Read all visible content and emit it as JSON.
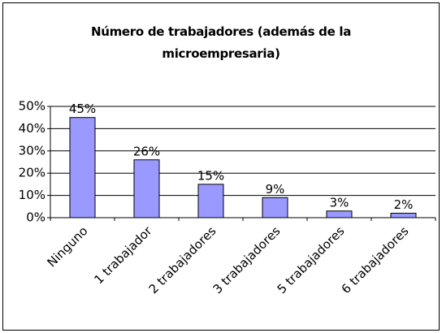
{
  "chart_data": {
    "type": "bar",
    "title": "Número de trabajadores (además de la microempresaria)",
    "categories": [
      "Ninguno",
      "1 trabajador",
      "2 trabajadores",
      "3 trabajadores",
      "5 trabajadores",
      "6 trabajadores"
    ],
    "values": [
      45,
      26,
      15,
      9,
      3,
      2
    ],
    "value_labels": [
      "45%",
      "26%",
      "15%",
      "9%",
      "3%",
      "2%"
    ],
    "color": "#9999ff",
    "ylim": [
      0,
      50
    ],
    "yticks": [
      {
        "value": 0,
        "label": "0%"
      },
      {
        "value": 10,
        "label": "10%"
      },
      {
        "value": 20,
        "label": "20%"
      },
      {
        "value": 30,
        "label": "30%"
      },
      {
        "value": 40,
        "label": "40%"
      },
      {
        "value": 50,
        "label": "50%"
      }
    ],
    "grid": true
  }
}
